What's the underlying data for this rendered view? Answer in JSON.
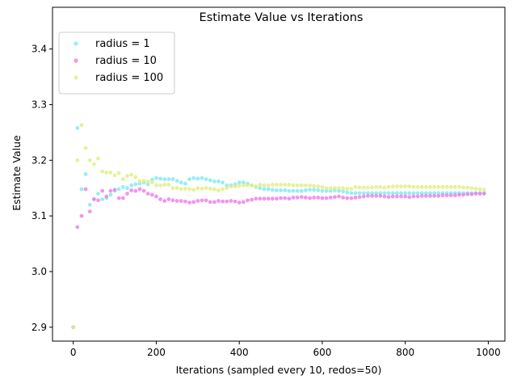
{
  "chart_data": {
    "type": "scatter",
    "title": "Estimate Value vs Iterations",
    "xlabel": "Iterations  (sampled every 10, redos=50)",
    "ylabel": "Estimate Value",
    "xlim": [
      -50,
      1040
    ],
    "ylim": [
      2.875,
      3.475
    ],
    "xticks": [
      0,
      200,
      400,
      600,
      800,
      1000
    ],
    "yticks": [
      2.9,
      3.0,
      3.1,
      3.2,
      3.3,
      3.4
    ],
    "grid": false,
    "legend_position": "top-left",
    "series": [
      {
        "name": "radius = 1",
        "color": "#7ee8f0",
        "x": [
          0,
          10,
          20,
          30,
          40,
          50,
          60,
          70,
          80,
          90,
          100,
          110,
          120,
          130,
          140,
          150,
          160,
          170,
          180,
          190,
          200,
          210,
          220,
          230,
          240,
          250,
          260,
          270,
          280,
          290,
          300,
          310,
          320,
          330,
          340,
          350,
          360,
          370,
          380,
          390,
          400,
          410,
          420,
          430,
          440,
          450,
          460,
          470,
          480,
          490,
          500,
          510,
          520,
          530,
          540,
          550,
          560,
          570,
          580,
          590,
          600,
          610,
          620,
          630,
          640,
          650,
          660,
          670,
          680,
          690,
          700,
          710,
          720,
          730,
          740,
          750,
          760,
          770,
          780,
          790,
          800,
          810,
          820,
          830,
          840,
          850,
          860,
          870,
          880,
          890,
          900,
          910,
          920,
          930,
          940,
          950,
          960,
          970,
          980,
          990
        ],
        "y": [
          2.9,
          3.258,
          3.148,
          3.175,
          3.12,
          3.13,
          3.14,
          3.13,
          3.132,
          3.138,
          3.145,
          3.148,
          3.152,
          3.15,
          3.155,
          3.157,
          3.158,
          3.16,
          3.157,
          3.165,
          3.168,
          3.167,
          3.166,
          3.166,
          3.166,
          3.163,
          3.16,
          3.158,
          3.166,
          3.168,
          3.167,
          3.168,
          3.166,
          3.164,
          3.162,
          3.162,
          3.16,
          3.155,
          3.155,
          3.157,
          3.16,
          3.16,
          3.158,
          3.155,
          3.152,
          3.15,
          3.148,
          3.148,
          3.147,
          3.146,
          3.146,
          3.146,
          3.145,
          3.145,
          3.145,
          3.145,
          3.146,
          3.147,
          3.147,
          3.146,
          3.145,
          3.145,
          3.145,
          3.146,
          3.145,
          3.144,
          3.142,
          3.141,
          3.141,
          3.141,
          3.141,
          3.141,
          3.141,
          3.141,
          3.141,
          3.141,
          3.141,
          3.141,
          3.141,
          3.141,
          3.141,
          3.141,
          3.141,
          3.141,
          3.141,
          3.141,
          3.141,
          3.141,
          3.141,
          3.141,
          3.141,
          3.141,
          3.141,
          3.141,
          3.141,
          3.141,
          3.141,
          3.141,
          3.141,
          3.141
        ]
      },
      {
        "name": "radius = 10",
        "color": "#ee7ce8",
        "x": [
          0,
          10,
          20,
          30,
          40,
          50,
          60,
          70,
          80,
          90,
          100,
          110,
          120,
          130,
          140,
          150,
          160,
          170,
          180,
          190,
          200,
          210,
          220,
          230,
          240,
          250,
          260,
          270,
          280,
          290,
          300,
          310,
          320,
          330,
          340,
          350,
          360,
          370,
          380,
          390,
          400,
          410,
          420,
          430,
          440,
          450,
          460,
          470,
          480,
          490,
          500,
          510,
          520,
          530,
          540,
          550,
          560,
          570,
          580,
          590,
          600,
          610,
          620,
          630,
          640,
          650,
          660,
          670,
          680,
          690,
          700,
          710,
          720,
          730,
          740,
          750,
          760,
          770,
          780,
          790,
          800,
          810,
          820,
          830,
          840,
          850,
          860,
          870,
          880,
          890,
          900,
          910,
          920,
          930,
          940,
          950,
          960,
          970,
          980,
          990
        ],
        "y": [
          2.9,
          3.08,
          3.1,
          3.148,
          3.108,
          3.13,
          3.128,
          3.145,
          3.135,
          3.145,
          3.147,
          3.132,
          3.132,
          3.14,
          3.146,
          3.145,
          3.148,
          3.145,
          3.14,
          3.138,
          3.135,
          3.13,
          3.127,
          3.13,
          3.128,
          3.127,
          3.127,
          3.126,
          3.124,
          3.125,
          3.127,
          3.128,
          3.128,
          3.125,
          3.125,
          3.127,
          3.126,
          3.126,
          3.127,
          3.126,
          3.124,
          3.125,
          3.128,
          3.129,
          3.131,
          3.131,
          3.131,
          3.131,
          3.131,
          3.131,
          3.132,
          3.132,
          3.131,
          3.133,
          3.133,
          3.134,
          3.133,
          3.132,
          3.133,
          3.133,
          3.132,
          3.132,
          3.133,
          3.134,
          3.135,
          3.133,
          3.132,
          3.132,
          3.133,
          3.134,
          3.135,
          3.136,
          3.136,
          3.136,
          3.136,
          3.135,
          3.134,
          3.135,
          3.135,
          3.135,
          3.135,
          3.134,
          3.135,
          3.135,
          3.136,
          3.136,
          3.136,
          3.136,
          3.136,
          3.137,
          3.137,
          3.137,
          3.137,
          3.138,
          3.138,
          3.139,
          3.139,
          3.14,
          3.14,
          3.14
        ]
      },
      {
        "name": "radius = 100",
        "color": "#e0ee80",
        "x": [
          0,
          10,
          20,
          30,
          40,
          50,
          60,
          70,
          80,
          90,
          100,
          110,
          120,
          130,
          140,
          150,
          160,
          170,
          180,
          190,
          200,
          210,
          220,
          230,
          240,
          250,
          260,
          270,
          280,
          290,
          300,
          310,
          320,
          330,
          340,
          350,
          360,
          370,
          380,
          390,
          400,
          410,
          420,
          430,
          440,
          450,
          460,
          470,
          480,
          490,
          500,
          510,
          520,
          530,
          540,
          550,
          560,
          570,
          580,
          590,
          600,
          610,
          620,
          630,
          640,
          650,
          660,
          670,
          680,
          690,
          700,
          710,
          720,
          730,
          740,
          750,
          760,
          770,
          780,
          790,
          800,
          810,
          820,
          830,
          840,
          850,
          860,
          870,
          880,
          890,
          900,
          910,
          920,
          930,
          940,
          950,
          960,
          970,
          980,
          990
        ],
        "y": [
          2.9,
          3.2,
          3.263,
          3.222,
          3.2,
          3.193,
          3.203,
          3.18,
          3.178,
          3.178,
          3.173,
          3.177,
          3.166,
          3.172,
          3.174,
          3.17,
          3.163,
          3.163,
          3.162,
          3.16,
          3.155,
          3.155,
          3.156,
          3.156,
          3.15,
          3.15,
          3.148,
          3.149,
          3.148,
          3.147,
          3.15,
          3.149,
          3.15,
          3.149,
          3.148,
          3.146,
          3.148,
          3.15,
          3.153,
          3.153,
          3.154,
          3.155,
          3.155,
          3.155,
          3.153,
          3.156,
          3.155,
          3.155,
          3.156,
          3.156,
          3.156,
          3.156,
          3.156,
          3.155,
          3.155,
          3.155,
          3.155,
          3.155,
          3.154,
          3.153,
          3.152,
          3.15,
          3.15,
          3.15,
          3.15,
          3.15,
          3.149,
          3.149,
          3.152,
          3.151,
          3.151,
          3.151,
          3.151,
          3.152,
          3.152,
          3.151,
          3.152,
          3.153,
          3.153,
          3.153,
          3.153,
          3.153,
          3.152,
          3.152,
          3.152,
          3.152,
          3.152,
          3.152,
          3.152,
          3.152,
          3.152,
          3.152,
          3.152,
          3.152,
          3.151,
          3.151,
          3.15,
          3.149,
          3.148,
          3.147
        ]
      }
    ]
  }
}
